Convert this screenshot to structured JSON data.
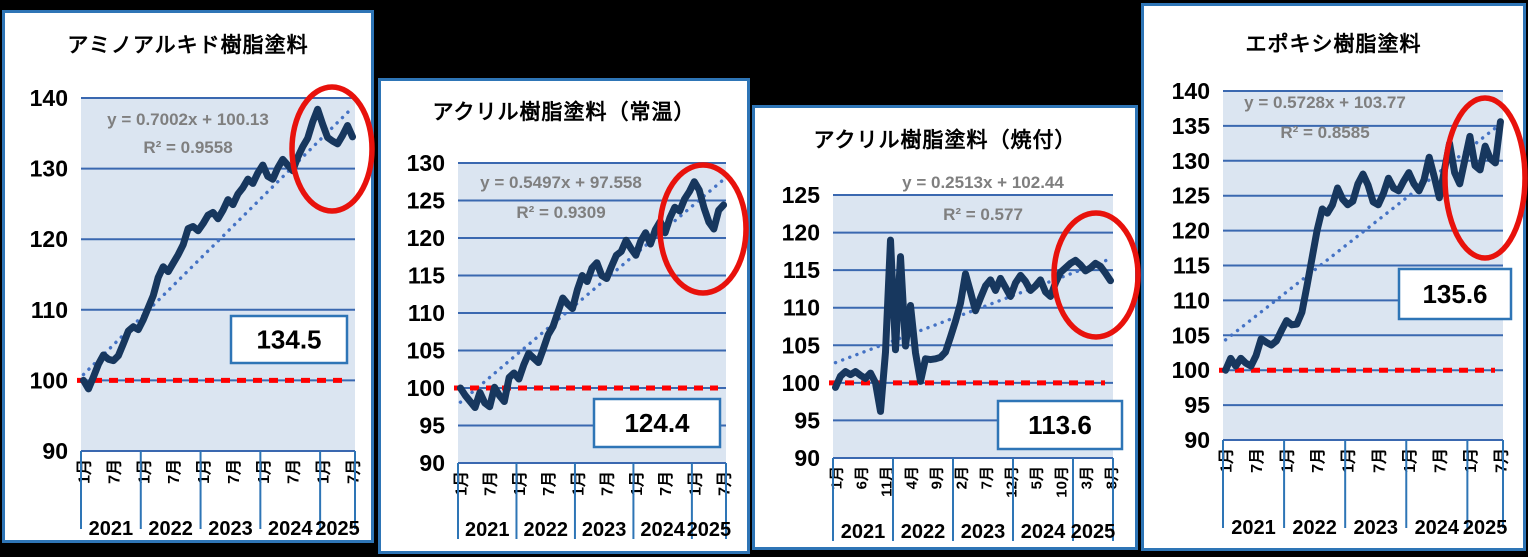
{
  "colors": {
    "panel_border": "#2e75b6",
    "plot_background": "#dbe5f1",
    "gridline": "#3a68b0",
    "series": "#17375e",
    "trendline": "#4472c4",
    "baseline_red": "#ff0000",
    "highlight_circle": "#e8120c",
    "equation_text": "#7f7f7f",
    "axis_text": "#000000"
  },
  "chart_data": [
    {
      "type": "line",
      "title": "アミノアルキド樹脂塗料",
      "trendline_equation": "y = 0.7002x + 100.13",
      "r_squared_label": "R² = 0.9558",
      "trend": {
        "slope": 0.7002,
        "intercept": 100.13
      },
      "ylim": [
        90,
        140
      ],
      "ytick_step": 10,
      "baseline": {
        "value": 100
      },
      "latest_value_label": "134.5",
      "x_tick_labels": [
        {
          "index": 0,
          "label": "1月"
        },
        {
          "index": 6,
          "label": "7月"
        },
        {
          "index": 12,
          "label": "1月"
        },
        {
          "index": 18,
          "label": "7月"
        },
        {
          "index": 24,
          "label": "1月"
        },
        {
          "index": 30,
          "label": "7月"
        },
        {
          "index": 36,
          "label": "1月"
        },
        {
          "index": 42,
          "label": "7月"
        },
        {
          "index": 48,
          "label": "1月"
        },
        {
          "index": 54,
          "label": "7月"
        }
      ],
      "years": [
        {
          "label": "2021",
          "from_month": 0,
          "to_month": 12
        },
        {
          "label": "2022",
          "from_month": 12,
          "to_month": 24
        },
        {
          "label": "2023",
          "from_month": 24,
          "to_month": 36
        },
        {
          "label": "2024",
          "from_month": 36,
          "to_month": 48
        },
        {
          "label": "2025",
          "from_month": 48,
          "to_month": 55
        }
      ],
      "values": [
        100.0,
        98.8,
        100.5,
        102.3,
        103.6,
        103.0,
        102.8,
        103.5,
        105.2,
        107.0,
        107.6,
        107.2,
        108.6,
        110.3,
        112.0,
        114.6,
        116.1,
        115.4,
        116.6,
        117.8,
        119.2,
        121.5,
        121.8,
        121.2,
        122.2,
        123.4,
        123.8,
        122.9,
        124.1,
        125.6,
        124.9,
        126.4,
        127.3,
        128.5,
        127.9,
        129.4,
        130.5,
        128.9,
        128.5,
        130.1,
        131.3,
        130.5,
        129.7,
        131.6,
        133.1,
        134.3,
        136.6,
        138.4,
        136.3,
        134.4,
        133.9,
        133.5,
        134.7,
        136.1,
        134.5
      ]
    },
    {
      "type": "line",
      "title": "アクリル樹脂塗料（常温）",
      "trendline_equation": "y = 0.5497x + 97.558",
      "r_squared_label": "R² = 0.9309",
      "trend": {
        "slope": 0.5497,
        "intercept": 97.558
      },
      "ylim": [
        90,
        130
      ],
      "ytick_step": 5,
      "baseline": {
        "value": 100
      },
      "latest_value_label": "124.4",
      "x_tick_labels": [
        {
          "index": 0,
          "label": "1月"
        },
        {
          "index": 6,
          "label": "7月"
        },
        {
          "index": 12,
          "label": "1月"
        },
        {
          "index": 18,
          "label": "7月"
        },
        {
          "index": 24,
          "label": "1月"
        },
        {
          "index": 30,
          "label": "7月"
        },
        {
          "index": 36,
          "label": "1月"
        },
        {
          "index": 42,
          "label": "7月"
        },
        {
          "index": 48,
          "label": "1月"
        },
        {
          "index": 54,
          "label": "7月"
        }
      ],
      "years": [
        {
          "label": "2021",
          "from_month": 0,
          "to_month": 12
        },
        {
          "label": "2022",
          "from_month": 12,
          "to_month": 24
        },
        {
          "label": "2023",
          "from_month": 24,
          "to_month": 36
        },
        {
          "label": "2024",
          "from_month": 36,
          "to_month": 48
        },
        {
          "label": "2025",
          "from_month": 48,
          "to_month": 55
        }
      ],
      "values": [
        100.0,
        99.0,
        98.2,
        97.4,
        99.4,
        98.0,
        97.5,
        100.1,
        99.0,
        98.2,
        101.4,
        102.0,
        101.2,
        103.1,
        104.6,
        104.0,
        103.4,
        105.2,
        107.1,
        108.2,
        110.1,
        112.0,
        111.2,
        110.6,
        113.1,
        115.0,
        114.2,
        116.0,
        116.7,
        115.0,
        114.6,
        116.2,
        117.7,
        118.2,
        119.7,
        118.6,
        117.7,
        119.6,
        120.7,
        119.2,
        121.1,
        122.2,
        120.7,
        122.7,
        124.1,
        123.6,
        125.2,
        126.2,
        127.5,
        126.4,
        124.0,
        122.1,
        121.2,
        123.7,
        124.4
      ]
    },
    {
      "type": "line",
      "title": "アクリル樹脂塗料（焼付）",
      "trendline_equation": "y = 0.2513x + 102.44",
      "r_squared_label": "R² = 0.577",
      "trend": {
        "slope": 0.2513,
        "intercept": 102.44
      },
      "ylim": [
        90,
        125
      ],
      "ytick_step": 5,
      "baseline": {
        "value": 100
      },
      "latest_value_label": "113.6",
      "x_tick_labels": [
        {
          "index": 0,
          "label": "1月"
        },
        {
          "index": 5,
          "label": "6月"
        },
        {
          "index": 10,
          "label": "11月"
        },
        {
          "index": 15,
          "label": "4月"
        },
        {
          "index": 20,
          "label": "9月"
        },
        {
          "index": 25,
          "label": "2月"
        },
        {
          "index": 30,
          "label": "7月"
        },
        {
          "index": 35,
          "label": "12月"
        },
        {
          "index": 40,
          "label": "5月"
        },
        {
          "index": 45,
          "label": "10月"
        },
        {
          "index": 50,
          "label": "3月"
        },
        {
          "index": 55,
          "label": "8月"
        }
      ],
      "years": [
        {
          "label": "2021",
          "from_month": 0,
          "to_month": 12
        },
        {
          "label": "2022",
          "from_month": 12,
          "to_month": 24
        },
        {
          "label": "2023",
          "from_month": 24,
          "to_month": 36
        },
        {
          "label": "2024",
          "from_month": 36,
          "to_month": 48
        },
        {
          "label": "2025",
          "from_month": 48,
          "to_month": 56
        }
      ],
      "values": [
        99.4,
        100.9,
        101.5,
        101.1,
        101.5,
        101.0,
        100.6,
        101.3,
        100.0,
        96.2,
        104.1,
        119.0,
        104.4,
        116.8,
        104.9,
        110.3,
        104.0,
        100.2,
        103.2,
        103.1,
        103.2,
        103.4,
        104.1,
        106.1,
        108.2,
        110.6,
        114.5,
        112.1,
        109.6,
        111.3,
        112.9,
        113.7,
        112.3,
        113.9,
        112.7,
        111.5,
        113.3,
        114.3,
        113.5,
        112.3,
        112.9,
        113.7,
        112.1,
        111.5,
        113.3,
        114.7,
        115.3,
        115.9,
        116.3,
        115.7,
        114.9,
        115.3,
        115.9,
        115.5,
        114.6,
        113.6
      ]
    },
    {
      "type": "line",
      "title": "エポキシ樹脂塗料",
      "trendline_equation": "y = 0.5728x + 103.77",
      "r_squared_label": "R² = 0.8585",
      "trend": {
        "slope": 0.5728,
        "intercept": 103.77
      },
      "ylim": [
        90,
        140
      ],
      "ytick_step": 5,
      "baseline": {
        "value": 100
      },
      "latest_value_label": "135.6",
      "x_tick_labels": [
        {
          "index": 0,
          "label": "1月"
        },
        {
          "index": 6,
          "label": "7月"
        },
        {
          "index": 12,
          "label": "1月"
        },
        {
          "index": 18,
          "label": "7月"
        },
        {
          "index": 24,
          "label": "1月"
        },
        {
          "index": 30,
          "label": "7月"
        },
        {
          "index": 36,
          "label": "1月"
        },
        {
          "index": 42,
          "label": "7月"
        },
        {
          "index": 48,
          "label": "1月"
        },
        {
          "index": 54,
          "label": "7月"
        }
      ],
      "years": [
        {
          "label": "2021",
          "from_month": 0,
          "to_month": 12
        },
        {
          "label": "2022",
          "from_month": 12,
          "to_month": 24
        },
        {
          "label": "2023",
          "from_month": 24,
          "to_month": 36
        },
        {
          "label": "2024",
          "from_month": 36,
          "to_month": 48
        },
        {
          "label": "2025",
          "from_month": 48,
          "to_month": 55
        }
      ],
      "values": [
        100.0,
        101.7,
        100.6,
        101.7,
        101.0,
        100.6,
        102.1,
        104.5,
        104.0,
        103.6,
        104.2,
        105.7,
        107.1,
        106.5,
        106.6,
        108.3,
        112.1,
        116.1,
        120.1,
        123.1,
        122.5,
        123.7,
        126.1,
        124.5,
        123.7,
        124.2,
        126.7,
        128.1,
        126.5,
        124.1,
        123.7,
        125.3,
        127.5,
        126.1,
        125.7,
        127.1,
        128.3,
        126.7,
        125.7,
        127.3,
        130.5,
        127.7,
        124.7,
        128.7,
        132.5,
        128.3,
        126.7,
        130.1,
        133.5,
        129.3,
        128.7,
        132.1,
        130.3,
        129.7,
        135.6
      ]
    }
  ]
}
